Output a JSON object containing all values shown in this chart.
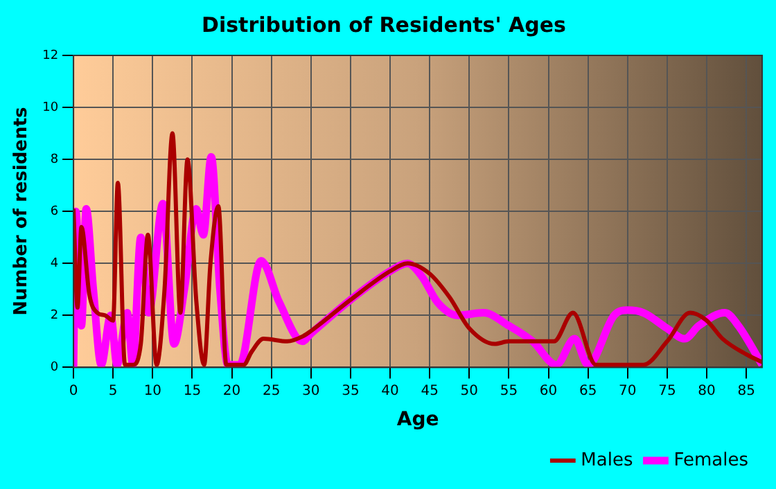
{
  "chart_data": {
    "type": "line",
    "title": "Distribution of Residents' Ages",
    "xlabel": "Age",
    "ylabel": "Number of residents",
    "xlim": [
      0,
      87
    ],
    "xticks": [
      0,
      5,
      10,
      15,
      20,
      25,
      30,
      35,
      40,
      45,
      50,
      55,
      60,
      65,
      70,
      75,
      80,
      85
    ],
    "ylim": [
      0,
      12
    ],
    "yticks": [
      0,
      2,
      4,
      6,
      8,
      10,
      12
    ],
    "grid": true,
    "legend": "bottom right",
    "marker": "none",
    "line_style": "solid",
    "series": [
      {
        "name": "Males",
        "color": "#aa0000",
        "x": [
          0,
          0.5,
          1,
          2,
          3,
          4,
          5,
          5.6,
          6.5,
          7.5,
          8.5,
          9.4,
          10.5,
          11.5,
          12.5,
          13.5,
          14.4,
          15.5,
          16.5,
          17.3,
          18.3,
          19.3,
          20.5,
          21.5,
          22.5,
          24,
          27,
          29,
          30,
          35,
          40,
          42.2,
          45,
          47.5,
          50,
          53.2,
          55,
          58,
          60.7,
          63.1,
          66,
          69,
          72,
          75,
          77.9,
          80,
          82,
          85,
          87
        ],
        "values": [
          6.1,
          2.3,
          5.4,
          2.8,
          2.1,
          2.0,
          1.8,
          7.1,
          0.1,
          0.1,
          0.9,
          5.1,
          0.1,
          3.0,
          9.0,
          2.1,
          8.0,
          2.6,
          0.1,
          4.0,
          6.2,
          0.1,
          0.1,
          0.1,
          0.6,
          1.1,
          1.0,
          1.2,
          1.4,
          2.6,
          3.7,
          4.0,
          3.6,
          2.7,
          1.5,
          0.9,
          1.0,
          1.0,
          1.0,
          2.1,
          0.1,
          0.1,
          0.1,
          1.0,
          2.1,
          1.8,
          1.1,
          0.5,
          0.2
        ]
      },
      {
        "name": "Females",
        "color": "#ff00ff",
        "x": [
          0,
          0.3,
          1,
          1.6,
          2.5,
          3.5,
          4.7,
          5.5,
          6.8,
          7.5,
          8.5,
          9.5,
          11.3,
          12.7,
          14,
          15.5,
          16.4,
          17.4,
          18.5,
          19.5,
          21,
          23.7,
          26,
          28.9,
          30,
          35,
          40,
          42.2,
          44,
          46,
          48.5,
          51.8,
          55,
          58,
          61,
          63.3,
          65,
          68.3,
          70,
          72,
          75,
          77.2,
          79,
          82.3,
          84,
          87
        ],
        "values": [
          0,
          6,
          1.6,
          6.1,
          3.0,
          0.1,
          2.0,
          0.1,
          2.1,
          0.1,
          5.0,
          2.1,
          6.3,
          0.9,
          3.0,
          6.1,
          5.1,
          8.1,
          3.0,
          0.1,
          0.1,
          4.1,
          2.5,
          1.0,
          1.3,
          2.6,
          3.7,
          4.0,
          3.5,
          2.5,
          2.0,
          2.1,
          1.6,
          1.0,
          0.1,
          1.1,
          0.1,
          2.0,
          2.2,
          2.1,
          1.5,
          1.1,
          1.6,
          2.1,
          1.6,
          0.1
        ]
      }
    ]
  }
}
